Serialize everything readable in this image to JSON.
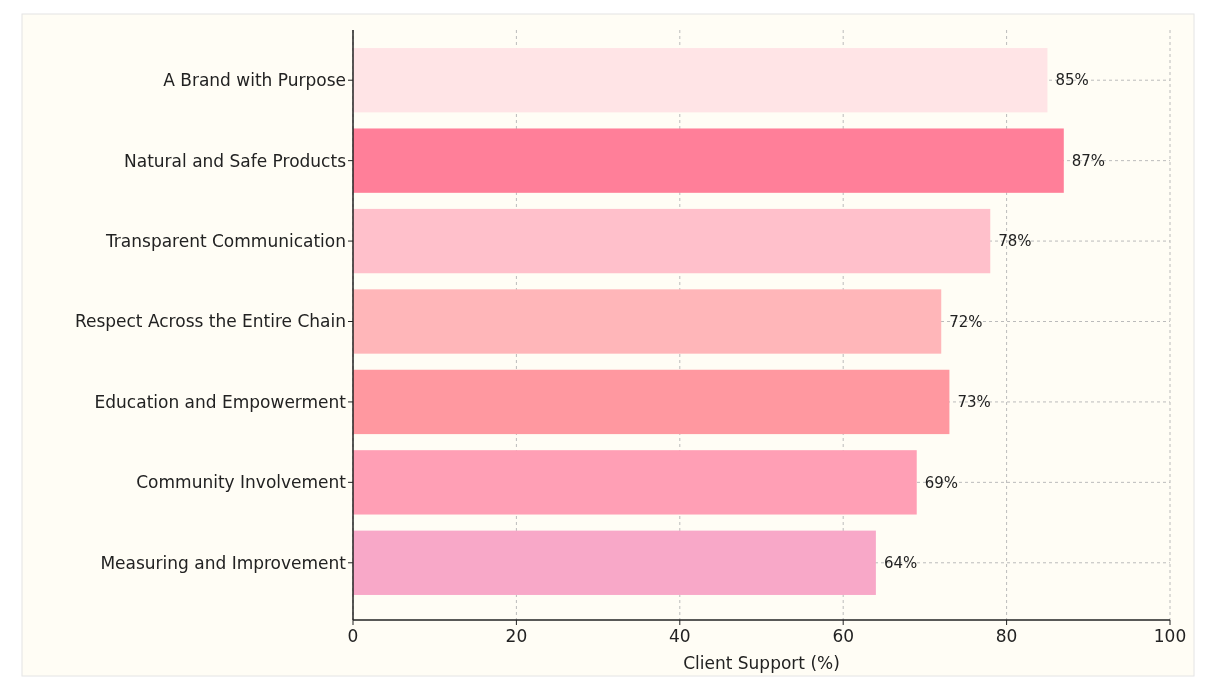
{
  "chart_data": {
    "type": "bar",
    "orientation": "horizontal",
    "categories": [
      "A Brand with Purpose",
      "Natural and Safe Products",
      "Transparent Communication",
      "Respect Across the Entire Chain",
      "Education and Empowerment",
      "Community Involvement",
      "Measuring and Improvement"
    ],
    "values": [
      85,
      87,
      78,
      72,
      73,
      69,
      64
    ],
    "colors": [
      "#ffe4e6",
      "#ff7f99",
      "#ffc0cb",
      "#ffb6b9",
      "#ff98a0",
      "#ff9fb5",
      "#f8a8c8"
    ],
    "value_labels": [
      "85%",
      "87%",
      "78%",
      "72%",
      "73%",
      "69%",
      "64%"
    ],
    "xlabel": "Client Support (%)",
    "xlim": [
      0,
      100
    ],
    "xticks": [
      0,
      20,
      40,
      60,
      80,
      100
    ],
    "grid": true
  }
}
